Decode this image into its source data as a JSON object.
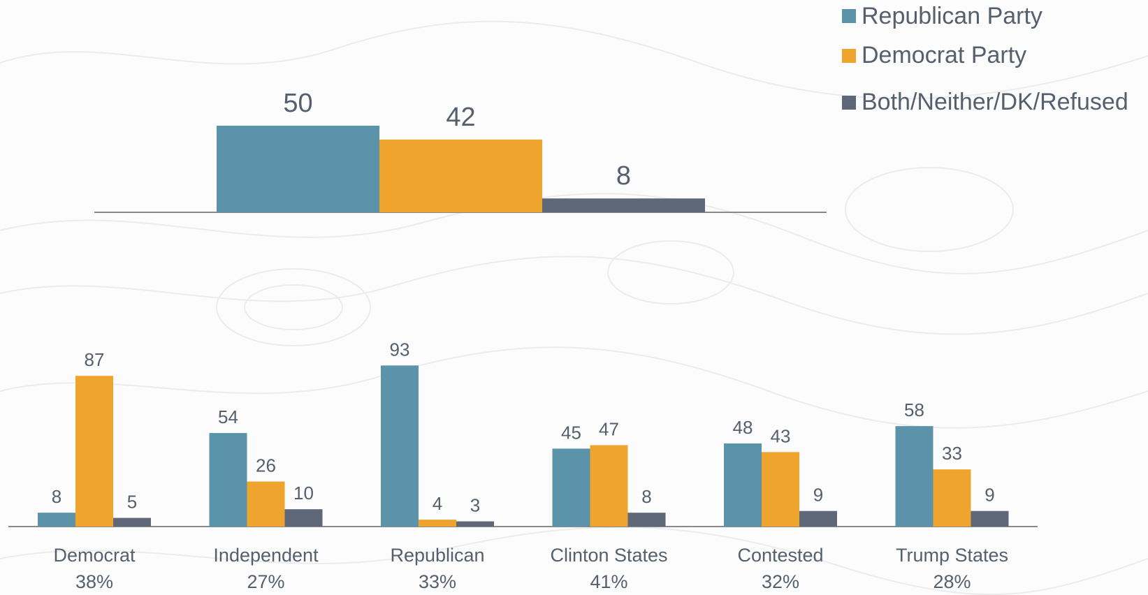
{
  "legend": [
    {
      "name": "Republican Party",
      "color": "#5b93aa"
    },
    {
      "name": "Democrat Party",
      "color": "#eea42d"
    },
    {
      "name": "Both/Neither/DK/Refused",
      "color": "#5e6878"
    }
  ],
  "chart_data": [
    {
      "type": "bar",
      "categories": [
        ""
      ],
      "series": [
        {
          "name": "Republican Party",
          "values": [
            50
          ]
        },
        {
          "name": "Democrat Party",
          "values": [
            42
          ]
        },
        {
          "name": "Both/Neither/DK/Refused",
          "values": [
            8
          ]
        }
      ],
      "data_labels": true,
      "gridlines": false
    },
    {
      "type": "bar",
      "categories": [
        "Democrat",
        "Independent",
        "Republican",
        "Clinton States",
        "Contested",
        "Trump States"
      ],
      "category_shares": [
        "38%",
        "27%",
        "33%",
        "41%",
        "32%",
        "28%"
      ],
      "series": [
        {
          "name": "Republican Party",
          "values": [
            8,
            54,
            93,
            45,
            48,
            58
          ]
        },
        {
          "name": "Democrat Party",
          "values": [
            87,
            26,
            4,
            47,
            43,
            33
          ]
        },
        {
          "name": "Both/Neither/DK/Refused",
          "values": [
            5,
            10,
            3,
            8,
            9,
            9
          ]
        }
      ],
      "data_labels": true,
      "gridlines": false
    }
  ]
}
